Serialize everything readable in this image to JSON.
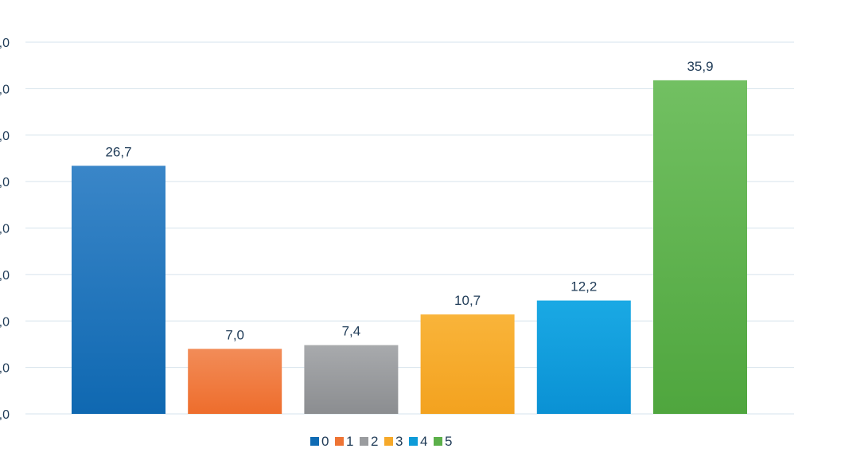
{
  "chart_data": {
    "type": "bar",
    "categories": [
      "0",
      "1",
      "2",
      "3",
      "4",
      "5"
    ],
    "values": [
      26.7,
      7.0,
      7.4,
      10.7,
      12.2,
      35.9
    ],
    "value_labels": [
      "26,7",
      "7,0",
      "7,4",
      "10,7",
      "12,2",
      "35,9"
    ],
    "y_tick_labels": [
      ",0",
      ",0",
      ",0",
      ",0",
      ",0",
      ",0",
      ",0",
      ",0",
      ",0"
    ],
    "ylim": [
      0,
      40
    ],
    "grid": true,
    "legend_position": "bottom",
    "colors": {
      "top": [
        "#3a86c8",
        "#f28c58",
        "#a8aaad",
        "#f9b43a",
        "#1aa9e4",
        "#72c062"
      ],
      "bottom": [
        "#0f68b1",
        "#ee6d2c",
        "#8b8d90",
        "#f3a21f",
        "#0a91d4",
        "#4fa63e"
      ],
      "legend": [
        "#0f6bb4",
        "#ee7434",
        "#9a9c9f",
        "#f6a92a",
        "#0e9bd8",
        "#5cb04a"
      ]
    },
    "title": "",
    "xlabel": "",
    "ylabel": ""
  }
}
